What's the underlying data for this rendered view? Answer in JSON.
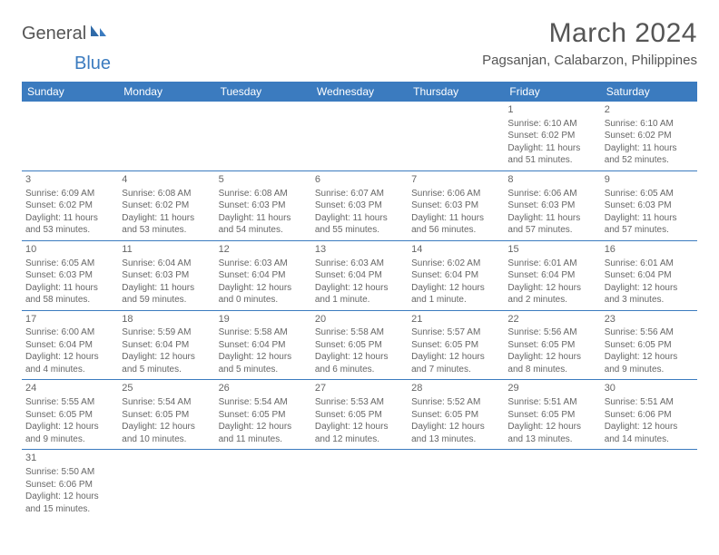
{
  "logo": {
    "general": "General",
    "blue": "Blue"
  },
  "title": "March 2024",
  "location": "Pagsanjan, Calabarzon, Philippines",
  "colors": {
    "headerBg": "#3b7bbf",
    "headerText": "#ffffff",
    "bodyText": "#666666",
    "ruleColor": "#3b7bbf",
    "pageBg": "#ffffff"
  },
  "dayHeaders": [
    "Sunday",
    "Monday",
    "Tuesday",
    "Wednesday",
    "Thursday",
    "Friday",
    "Saturday"
  ],
  "cells": [
    [
      null,
      null,
      null,
      null,
      null,
      {
        "n": "1",
        "sr": "6:10 AM",
        "ss": "6:02 PM",
        "dl": "11 hours and 51 minutes."
      },
      {
        "n": "2",
        "sr": "6:10 AM",
        "ss": "6:02 PM",
        "dl": "11 hours and 52 minutes."
      }
    ],
    [
      {
        "n": "3",
        "sr": "6:09 AM",
        "ss": "6:02 PM",
        "dl": "11 hours and 53 minutes."
      },
      {
        "n": "4",
        "sr": "6:08 AM",
        "ss": "6:02 PM",
        "dl": "11 hours and 53 minutes."
      },
      {
        "n": "5",
        "sr": "6:08 AM",
        "ss": "6:03 PM",
        "dl": "11 hours and 54 minutes."
      },
      {
        "n": "6",
        "sr": "6:07 AM",
        "ss": "6:03 PM",
        "dl": "11 hours and 55 minutes."
      },
      {
        "n": "7",
        "sr": "6:06 AM",
        "ss": "6:03 PM",
        "dl": "11 hours and 56 minutes."
      },
      {
        "n": "8",
        "sr": "6:06 AM",
        "ss": "6:03 PM",
        "dl": "11 hours and 57 minutes."
      },
      {
        "n": "9",
        "sr": "6:05 AM",
        "ss": "6:03 PM",
        "dl": "11 hours and 57 minutes."
      }
    ],
    [
      {
        "n": "10",
        "sr": "6:05 AM",
        "ss": "6:03 PM",
        "dl": "11 hours and 58 minutes."
      },
      {
        "n": "11",
        "sr": "6:04 AM",
        "ss": "6:03 PM",
        "dl": "11 hours and 59 minutes."
      },
      {
        "n": "12",
        "sr": "6:03 AM",
        "ss": "6:04 PM",
        "dl": "12 hours and 0 minutes."
      },
      {
        "n": "13",
        "sr": "6:03 AM",
        "ss": "6:04 PM",
        "dl": "12 hours and 1 minute."
      },
      {
        "n": "14",
        "sr": "6:02 AM",
        "ss": "6:04 PM",
        "dl": "12 hours and 1 minute."
      },
      {
        "n": "15",
        "sr": "6:01 AM",
        "ss": "6:04 PM",
        "dl": "12 hours and 2 minutes."
      },
      {
        "n": "16",
        "sr": "6:01 AM",
        "ss": "6:04 PM",
        "dl": "12 hours and 3 minutes."
      }
    ],
    [
      {
        "n": "17",
        "sr": "6:00 AM",
        "ss": "6:04 PM",
        "dl": "12 hours and 4 minutes."
      },
      {
        "n": "18",
        "sr": "5:59 AM",
        "ss": "6:04 PM",
        "dl": "12 hours and 5 minutes."
      },
      {
        "n": "19",
        "sr": "5:58 AM",
        "ss": "6:04 PM",
        "dl": "12 hours and 5 minutes."
      },
      {
        "n": "20",
        "sr": "5:58 AM",
        "ss": "6:05 PM",
        "dl": "12 hours and 6 minutes."
      },
      {
        "n": "21",
        "sr": "5:57 AM",
        "ss": "6:05 PM",
        "dl": "12 hours and 7 minutes."
      },
      {
        "n": "22",
        "sr": "5:56 AM",
        "ss": "6:05 PM",
        "dl": "12 hours and 8 minutes."
      },
      {
        "n": "23",
        "sr": "5:56 AM",
        "ss": "6:05 PM",
        "dl": "12 hours and 9 minutes."
      }
    ],
    [
      {
        "n": "24",
        "sr": "5:55 AM",
        "ss": "6:05 PM",
        "dl": "12 hours and 9 minutes."
      },
      {
        "n": "25",
        "sr": "5:54 AM",
        "ss": "6:05 PM",
        "dl": "12 hours and 10 minutes."
      },
      {
        "n": "26",
        "sr": "5:54 AM",
        "ss": "6:05 PM",
        "dl": "12 hours and 11 minutes."
      },
      {
        "n": "27",
        "sr": "5:53 AM",
        "ss": "6:05 PM",
        "dl": "12 hours and 12 minutes."
      },
      {
        "n": "28",
        "sr": "5:52 AM",
        "ss": "6:05 PM",
        "dl": "12 hours and 13 minutes."
      },
      {
        "n": "29",
        "sr": "5:51 AM",
        "ss": "6:05 PM",
        "dl": "12 hours and 13 minutes."
      },
      {
        "n": "30",
        "sr": "5:51 AM",
        "ss": "6:06 PM",
        "dl": "12 hours and 14 minutes."
      }
    ],
    [
      {
        "n": "31",
        "sr": "5:50 AM",
        "ss": "6:06 PM",
        "dl": "12 hours and 15 minutes."
      },
      null,
      null,
      null,
      null,
      null,
      null
    ]
  ],
  "labels": {
    "sunrise": "Sunrise: ",
    "sunset": "Sunset: ",
    "daylight": "Daylight: "
  }
}
